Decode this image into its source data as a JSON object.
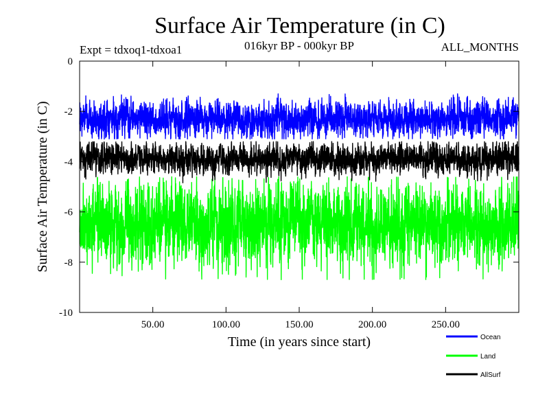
{
  "chart_data": {
    "type": "line",
    "title": "Surface Air Temperature (in C)",
    "subtitle": "016kyr BP - 000kyr BP",
    "experiment": "Expt = tdxoq1-tdxoa1",
    "months": "ALL_MONTHS",
    "xlabel": "Time (in years since start)",
    "ylabel": "Surface Air Temperature (in C)",
    "xlim": [
      0,
      300
    ],
    "ylim": [
      -10,
      0
    ],
    "x_ticks": [
      50,
      100,
      150,
      200,
      250
    ],
    "x_tick_labels": [
      "50.00",
      "100.00",
      "150.00",
      "200.00",
      "250.00"
    ],
    "y_ticks": [
      0,
      -2,
      -4,
      -6,
      -8,
      -10
    ],
    "y_tick_labels": [
      "0",
      "-2",
      "-4",
      "-6",
      "-8",
      "-10"
    ],
    "series": [
      {
        "name": "Ocean",
        "color": "#0000ff",
        "mean": -2.3,
        "min": -3.1,
        "max": -1.3,
        "noise": 0.33
      },
      {
        "name": "Land",
        "color": "#00ff00",
        "mean": -6.5,
        "min": -8.7,
        "max": -4.6,
        "noise": 0.75
      },
      {
        "name": "AllSurf",
        "color": "#000000",
        "mean": -3.9,
        "min": -4.9,
        "max": -3.2,
        "noise": 0.28
      }
    ],
    "legend_placement": "bottom-right"
  }
}
